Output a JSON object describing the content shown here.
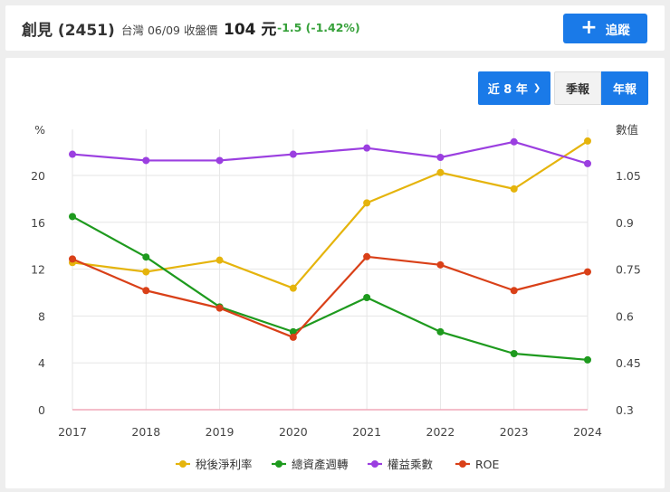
{
  "header": {
    "name": "創見 (2451)",
    "market_date": "台灣 06/09 收盤價",
    "price": "104 元",
    "change": "-1.5 (-1.42%)",
    "change_color": "#36a13a",
    "track_icon": "plus-icon",
    "track_label": "追蹤"
  },
  "controls": {
    "range_label": "近 8 年",
    "range_icon": "chevron-down-icon",
    "quarterly_label": "季報",
    "annual_label": "年報",
    "accent_color": "#1a7ae8"
  },
  "chart_data": {
    "type": "line",
    "categories": [
      "2017",
      "2018",
      "2019",
      "2020",
      "2021",
      "2022",
      "2023",
      "2024"
    ],
    "left_axis": {
      "label": "%",
      "ticks": [
        "0",
        "4",
        "8",
        "12",
        "16",
        "20"
      ],
      "range": [
        0,
        24
      ]
    },
    "right_axis": {
      "label": "數值",
      "ticks": [
        "0.3",
        "0.45",
        "0.6",
        "0.75",
        "0.9",
        "1.05"
      ],
      "range": [
        0.3,
        1.2
      ]
    },
    "series": [
      {
        "name": "稅後淨利率",
        "axis": "left",
        "color": "#e5b40c",
        "values": [
          12.6,
          11.8,
          12.8,
          10.4,
          17.7,
          20.3,
          18.9,
          23.0
        ]
      },
      {
        "name": "總資產週轉",
        "axis": "right",
        "color": "#1e9a1e",
        "values": [
          0.92,
          0.79,
          0.63,
          0.55,
          0.66,
          0.55,
          0.48,
          0.46
        ]
      },
      {
        "name": "權益乘數",
        "axis": "right",
        "color": "#9b3fe0",
        "values": [
          1.12,
          1.1,
          1.1,
          1.12,
          1.14,
          1.11,
          1.16,
          1.09
        ]
      },
      {
        "name": "ROE",
        "axis": "left",
        "color": "#d94018",
        "values": [
          12.9,
          10.2,
          8.7,
          6.2,
          13.1,
          12.4,
          10.2,
          11.8
        ]
      }
    ]
  }
}
